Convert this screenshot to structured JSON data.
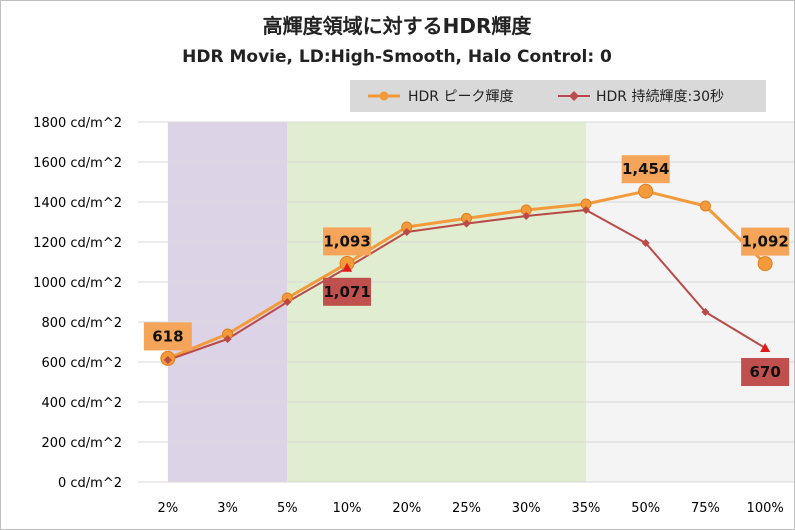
{
  "chart_data": {
    "type": "line",
    "title": "高輝度領域に対するHDR輝度",
    "subtitle": "HDR Movie, LD:High-Smooth, Halo Control: 0",
    "categories": [
      "2%",
      "3%",
      "5%",
      "10%",
      "20%",
      "25%",
      "30%",
      "35%",
      "50%",
      "75%",
      "100%"
    ],
    "y_ticks": [
      "0 cd/m^2",
      "200 cd/m^2",
      "400 cd/m^2",
      "600 cd/m^2",
      "800 cd/m^2",
      "1000 cd/m^2",
      "1200 cd/m^2",
      "1400 cd/m^2",
      "1600 cd/m^2",
      "1800 cd/m^2"
    ],
    "ylim": [
      0,
      1800
    ],
    "series": [
      {
        "name": "HDR ピーク輝度",
        "color": "#f39a3b",
        "marker": "circle",
        "values": [
          618,
          740,
          920,
          1093,
          1275,
          1318,
          1360,
          1390,
          1454,
          1380,
          1092
        ]
      },
      {
        "name": "HDR 持続輝度:30秒",
        "color": "#b94a48",
        "marker": "diamond",
        "values": [
          610,
          715,
          900,
          1071,
          1250,
          1292,
          1330,
          1360,
          1195,
          850,
          670
        ]
      }
    ],
    "data_labels": [
      {
        "series": 0,
        "index": 0,
        "text": "618"
      },
      {
        "series": 0,
        "index": 3,
        "text": "1,093"
      },
      {
        "series": 1,
        "index": 3,
        "text": "1,071"
      },
      {
        "series": 0,
        "index": 8,
        "text": "1,454"
      },
      {
        "series": 0,
        "index": 10,
        "text": "1,092"
      },
      {
        "series": 1,
        "index": 10,
        "text": "670"
      }
    ],
    "shaded_regions": [
      {
        "from_category": "2%",
        "to_category": "5%",
        "color": "#ddd3e6"
      },
      {
        "from_category": "5%",
        "to_category": "35%",
        "color": "#e1edd0"
      },
      {
        "from_category": "35%",
        "to_category": "100%",
        "color": "#f4f4f4"
      }
    ],
    "grid": true,
    "legend_position": "top-right"
  }
}
